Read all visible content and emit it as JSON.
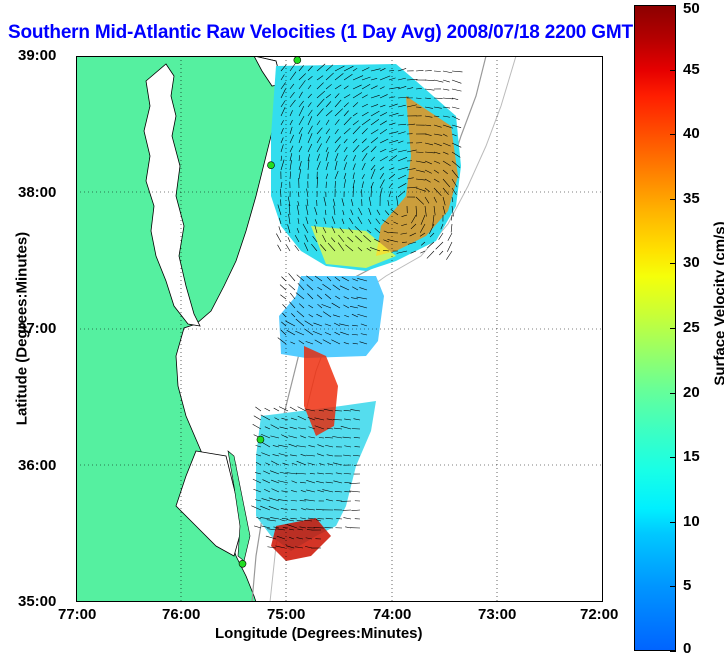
{
  "title": "Southern Mid-Atlantic Raw Velocities (1 Day Avg) 2008/07/18 2200 GMT",
  "x_axis": {
    "label": "Longitude (Degrees:Minutes)",
    "ticks": [
      "77:00",
      "76:00",
      "75:00",
      "74:00",
      "73:00",
      "72:00"
    ]
  },
  "y_axis": {
    "label": "Latitude (Degrees:Minutes)",
    "ticks": [
      "39:00",
      "38:00",
      "37:00",
      "36:00",
      "35:00"
    ]
  },
  "colorbar": {
    "label": "Surface Velocity (cm/s)",
    "ticks": [
      "50",
      "45",
      "40",
      "35",
      "30",
      "25",
      "20",
      "15",
      "10",
      "5",
      "0"
    ],
    "range": [
      0,
      50
    ]
  },
  "colors": {
    "land": "#55f0a0",
    "title": "#0000ff",
    "station": "#22dd22"
  },
  "map": {
    "lon_range": [
      -77,
      -72
    ],
    "lat_range": [
      35,
      39
    ],
    "stations": [
      {
        "lon": -74.9,
        "lat": 38.97
      },
      {
        "lon": -75.15,
        "lat": 38.2
      },
      {
        "lon": -75.25,
        "lat": 36.19
      },
      {
        "lon": -75.42,
        "lat": 35.28
      }
    ]
  }
}
